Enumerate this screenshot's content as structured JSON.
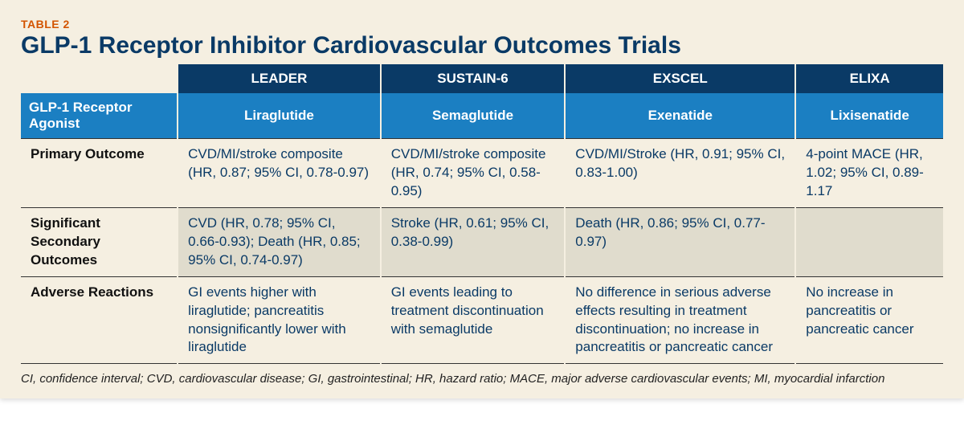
{
  "table": {
    "label": "TABLE 2",
    "title": "GLP-1 Receptor Inhibitor Cardiovascular Outcomes Trials",
    "corner_header": "GLP-1 Receptor Agonist",
    "trials": [
      "LEADER",
      "SUSTAIN-6",
      "EXSCEL",
      "ELIXA"
    ],
    "drugs": [
      "Liraglutide",
      "Semaglutide",
      "Exenatide",
      "Lixisenatide"
    ],
    "rows": [
      {
        "label": "Primary Outcome",
        "alt": false,
        "cells": [
          "CVD/MI/stroke composite (HR, 0.87; 95% CI, 0.78-0.97)",
          "CVD/MI/stroke composite (HR, 0.74; 95% CI, 0.58-0.95)",
          "CVD/MI/Stroke (HR, 0.91; 95% CI, 0.83-1.00)",
          "4-point MACE (HR, 1.02; 95% CI, 0.89-1.17"
        ]
      },
      {
        "label": "Significant Secondary Outcomes",
        "alt": true,
        "cells": [
          "CVD (HR, 0.78; 95% CI, 0.66-0.93); Death (HR, 0.85; 95% CI, 0.74-0.97)",
          "Stroke (HR, 0.61; 95% CI, 0.38-0.99)",
          "Death (HR, 0.86; 95% CI, 0.77-0.97)",
          ""
        ]
      },
      {
        "label": "Adverse Reactions",
        "alt": false,
        "cells": [
          "GI events higher with liraglutide; pancreatitis nonsignificantly lower with liraglutide",
          "GI events leading to treatment discontinuation with semaglutide",
          "No difference in serious adverse effects resulting in treatment discontinuation; no increase in pancreatitis or pancreatic cancer",
          "No increase in pancreatitis or pancreatic cancer"
        ]
      }
    ],
    "footnote": "CI, confidence interval; CVD, cardiovascular disease; GI, gastrointestinal; HR, hazard ratio; MACE, major adverse cardiovascular events; MI, myocardial infarction",
    "colors": {
      "panel_bg": "#f5efe1",
      "label_color": "#d35400",
      "title_color": "#0a3a66",
      "header_dark": "#0a3a66",
      "header_light": "#1b7fc2",
      "alt_row": "#e0dccd",
      "data_text": "#0a3a66",
      "border": "#333333"
    },
    "font_sizes": {
      "label": 14,
      "title": 30,
      "header": 17,
      "cell": 17,
      "footnote": 15
    },
    "column_widths_pct": [
      17,
      22,
      20,
      25,
      16
    ]
  }
}
